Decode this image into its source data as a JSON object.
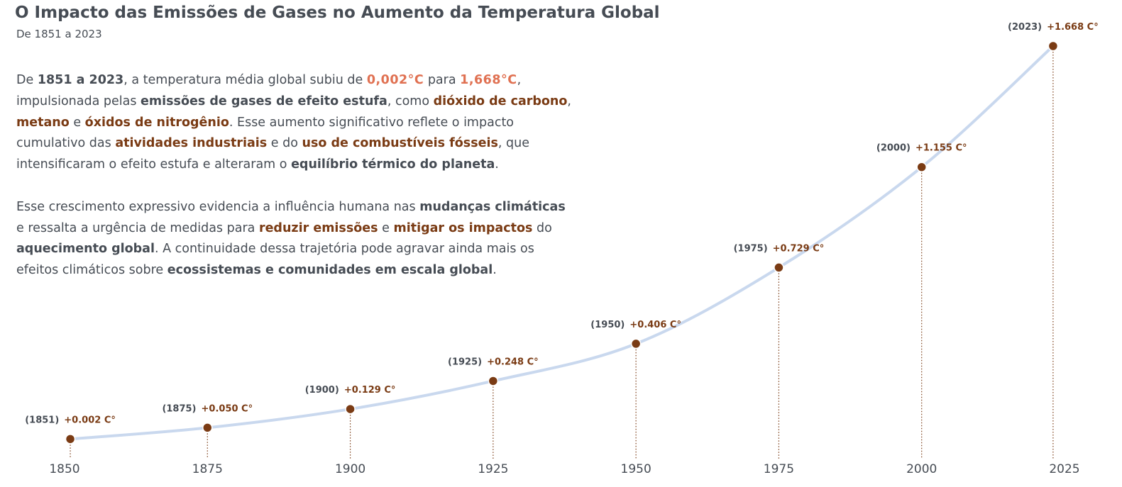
{
  "header": {
    "title": "O Impacto das Emissões de Gases no Aumento da Temperatura Global",
    "subtitle": "De 1851 a 2023"
  },
  "narrative": {
    "paragraphs": [
      [
        [
          [
            "t",
            "De "
          ],
          [
            "b",
            "1851 a 2023"
          ],
          [
            "t",
            ", a temperatura média global subiu de "
          ],
          [
            "h",
            "0,002°C"
          ],
          [
            "t",
            " para "
          ],
          [
            "h",
            "1,668°C"
          ],
          [
            "t",
            ","
          ]
        ],
        [
          [
            "t",
            "impulsionada pelas "
          ],
          [
            "b",
            "emissões de gases de efeito estufa"
          ],
          [
            "t",
            ", como "
          ],
          [
            "r",
            "dióxido de carbono"
          ],
          [
            "t",
            ","
          ]
        ],
        [
          [
            "r",
            "metano"
          ],
          [
            "t",
            " e "
          ],
          [
            "r",
            "óxidos de nitrogênio"
          ],
          [
            "t",
            ". Esse aumento significativo reflete o impacto"
          ]
        ],
        [
          [
            "t",
            "cumulativo das "
          ],
          [
            "r",
            "atividades industriais"
          ],
          [
            "t",
            " e do "
          ],
          [
            "r",
            "uso de combustíveis fósseis"
          ],
          [
            "t",
            ", que"
          ]
        ],
        [
          [
            "t",
            "intensificaram o efeito estufa e alteraram o "
          ],
          [
            "b",
            "equilíbrio térmico do planeta"
          ],
          [
            "t",
            "."
          ]
        ]
      ],
      [
        [
          [
            "t",
            "Esse crescimento expressivo evidencia a influência humana nas "
          ],
          [
            "b",
            "mudanças climáticas"
          ]
        ],
        [
          [
            "t",
            "e ressalta a urgência de medidas para "
          ],
          [
            "r",
            "reduzir emissões"
          ],
          [
            "t",
            " e "
          ],
          [
            "r",
            "mitigar os impactos"
          ],
          [
            "t",
            " do"
          ]
        ],
        [
          [
            "b",
            "aquecimento global"
          ],
          [
            "t",
            ". A continuidade dessa trajetória pode agravar ainda mais os"
          ]
        ],
        [
          [
            "t",
            "efeitos climáticos sobre "
          ],
          [
            "b",
            "ecossistemas e comunidades em escala global"
          ],
          [
            "t",
            "."
          ]
        ]
      ]
    ]
  },
  "chart_data": {
    "type": "line",
    "x": [
      1851,
      1875,
      1900,
      1925,
      1950,
      1975,
      2000,
      2023
    ],
    "y": [
      0.002,
      0.05,
      0.129,
      0.248,
      0.406,
      0.729,
      1.155,
      1.668
    ],
    "point_labels": [
      {
        "year": "(1851)",
        "value": "+0.002 C°"
      },
      {
        "year": "(1875)",
        "value": "+0.050 C°"
      },
      {
        "year": "(1900)",
        "value": "+0.129 C°"
      },
      {
        "year": "(1925)",
        "value": "+0.248 C°"
      },
      {
        "year": "(1950)",
        "value": "+0.406 C°"
      },
      {
        "year": "(1975)",
        "value": "+0.729 C°"
      },
      {
        "year": "(2000)",
        "value": "+1.155 C°"
      },
      {
        "year": "(2023)",
        "value": "+1.668 C°"
      }
    ],
    "xticks": [
      "1850",
      "1875",
      "1900",
      "1925",
      "1950",
      "1975",
      "2000",
      "2025"
    ],
    "xlim": [
      1850,
      2025
    ],
    "ylim": [
      0,
      1.668
    ],
    "grid": false,
    "colors": {
      "line": "#c9d8ee",
      "marker": "#7a3b14",
      "value_label": "#7a3b14",
      "text": "#464c54"
    }
  }
}
